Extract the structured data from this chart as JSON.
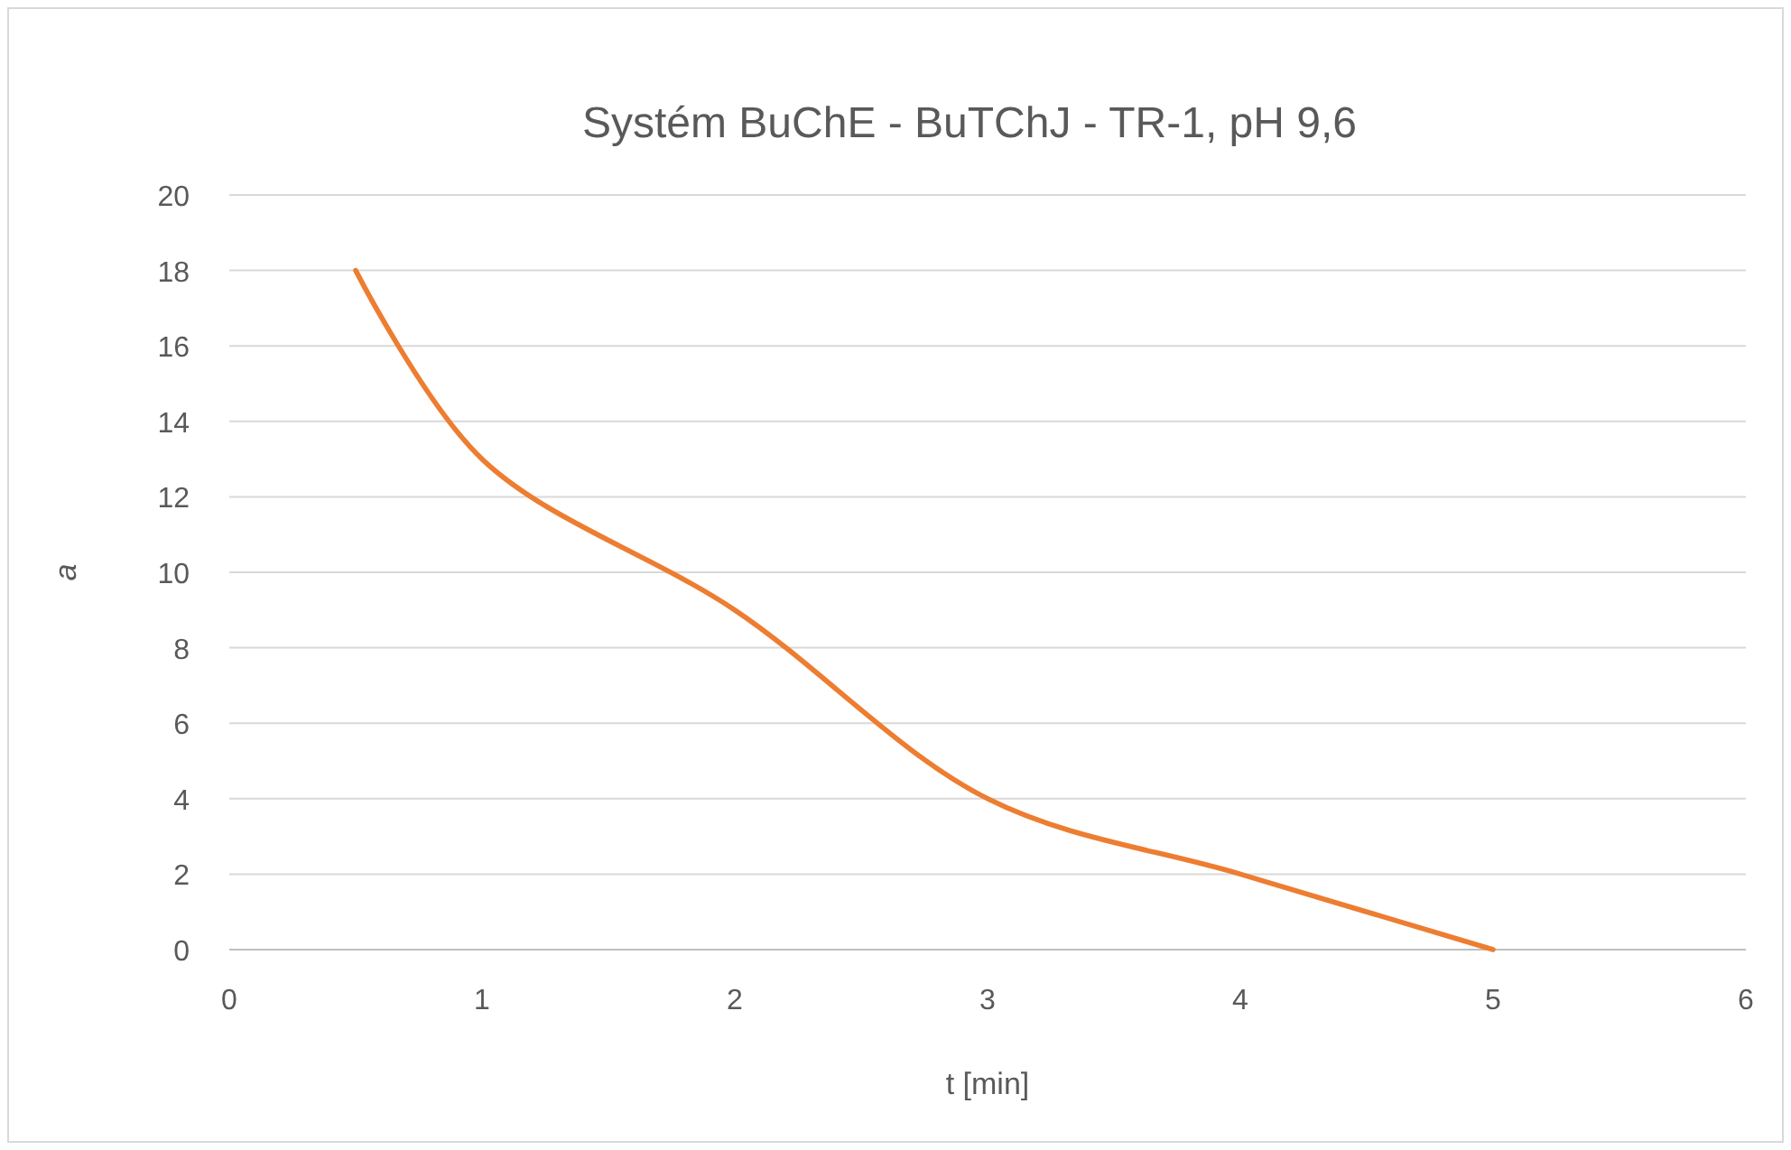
{
  "chart_data": {
    "type": "line",
    "title": "Systém BuChE - BuTChJ - TR-1, pH 9,6",
    "xlabel": "t [min]",
    "ylabel": "a",
    "x": [
      0.5,
      1,
      2,
      3,
      4,
      5
    ],
    "series": [
      {
        "color": "#ed7d31",
        "values": [
          18,
          13,
          9,
          4,
          2,
          0
        ]
      }
    ],
    "xlim": [
      0,
      6
    ],
    "xticks": [
      0,
      1,
      2,
      3,
      4,
      5,
      6
    ],
    "ylim": [
      0,
      20
    ],
    "yticks": [
      0,
      2,
      4,
      6,
      8,
      10,
      12,
      14,
      16,
      18,
      20
    ],
    "grid": "y",
    "marker": "none",
    "line_style": "solid"
  }
}
